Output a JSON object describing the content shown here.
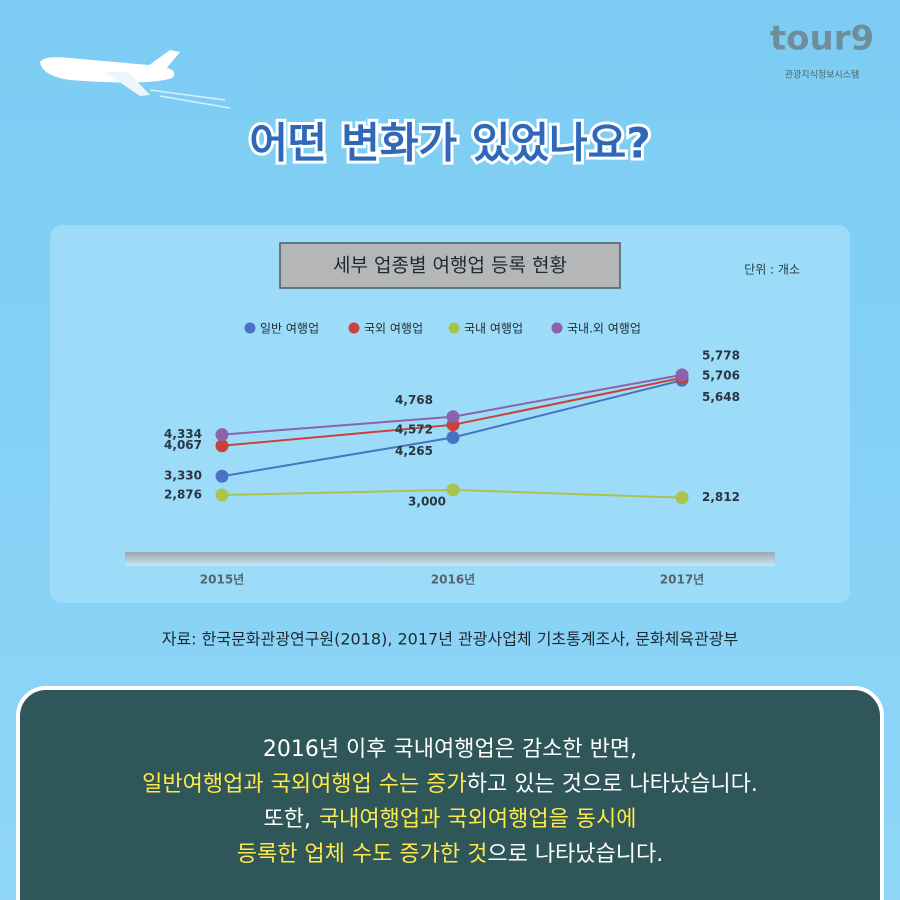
{
  "logo": {
    "name": "tour9",
    "subtitle": "관광지식정보시스템"
  },
  "heading": "어떤 변화가 있었나요?",
  "chart_data": {
    "type": "line",
    "title": "세부 업종별 여행업 등록 현황",
    "unit": "단위 : 개소",
    "categories": [
      "2015년",
      "2016년",
      "2017년"
    ],
    "ylim": [
      1500,
      6500
    ],
    "series": [
      {
        "name": "일반 여행업",
        "color": "#4a72c2",
        "values": [
          3330,
          4265,
          5648
        ],
        "value_labels": [
          "3,330",
          "4,265",
          "5,648"
        ]
      },
      {
        "name": "국외 여행업",
        "color": "#c8423a",
        "values": [
          4067,
          4572,
          5706
        ],
        "value_labels": [
          "4,067",
          "4,572",
          "5,706"
        ]
      },
      {
        "name": "국내 여행업",
        "color": "#a9c34c",
        "values": [
          2876,
          3000,
          2812
        ],
        "value_labels": [
          "2,876",
          "3,000",
          "2,812"
        ]
      },
      {
        "name": "국내.외 여행업",
        "color": "#8c62ad",
        "values": [
          4334,
          4768,
          5778
        ],
        "value_labels": [
          "4,334",
          "4,768",
          "5,778"
        ]
      }
    ]
  },
  "source": "자료: 한국문화관광연구원(2018), 2017년 관광사업체 기초통계조사, 문화체육관광부",
  "message": {
    "lines": [
      [
        "2016년 이후 국내여행업은 감소한 반면,"
      ],
      [
        "일반여행업과 국외여행업 수는 증가",
        "하고 있는 것으로 나타났습니다."
      ],
      [
        "또한,",
        "국내여행업과 국외여행업을 동시에"
      ],
      [
        "등록한 업체 수도 증가한 것",
        "으로 나타났습니다."
      ]
    ]
  }
}
